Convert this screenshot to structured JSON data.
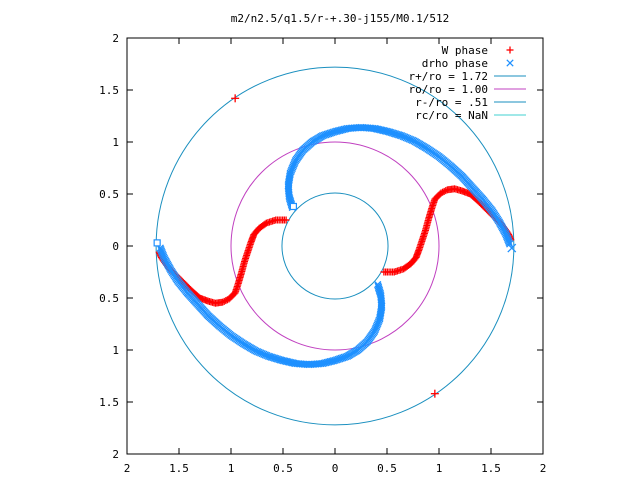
{
  "chart_data": {
    "type": "scatter",
    "title": "m2/n2.5/q1.5/r-+.30-j155/M0.1/512",
    "xlabel": "",
    "ylabel": "",
    "xlim": [
      -2,
      2
    ],
    "ylim": [
      -2,
      2
    ],
    "x_tick_labels": [
      "2",
      "1.5",
      "1",
      "0.5",
      "0",
      "0.5",
      "1",
      "1.5",
      "2"
    ],
    "y_tick_labels": [
      "2",
      "1.5",
      "1",
      "0.5",
      "0",
      "0.5",
      "1",
      "1.5",
      "2"
    ],
    "tick_values": [
      -2,
      -1.5,
      -1,
      -0.5,
      0,
      0.5,
      1,
      1.5,
      2
    ],
    "grid": false,
    "legend_position": "top-right",
    "series": [
      {
        "name": "W phase",
        "marker": "plus",
        "color": "#ff0000",
        "segments": [
          [
            [
              0.47,
              -0.25
            ],
            [
              0.57,
              -0.25
            ],
            [
              0.66,
              -0.22
            ],
            [
              0.73,
              -0.17
            ],
            [
              0.78,
              -0.11
            ],
            [
              0.81,
              -0.03
            ],
            [
              0.84,
              0.06
            ],
            [
              0.87,
              0.15
            ],
            [
              0.9,
              0.26
            ],
            [
              0.93,
              0.36
            ],
            [
              0.96,
              0.45
            ],
            [
              1.02,
              0.51
            ],
            [
              1.08,
              0.54
            ],
            [
              1.15,
              0.55
            ],
            [
              1.22,
              0.53
            ],
            [
              1.3,
              0.5
            ],
            [
              1.38,
              0.43
            ],
            [
              1.45,
              0.36
            ],
            [
              1.52,
              0.29
            ],
            [
              1.58,
              0.23
            ],
            [
              1.63,
              0.17
            ],
            [
              1.67,
              0.11
            ],
            [
              1.69,
              0.06
            ]
          ],
          [
            [
              -0.47,
              0.25
            ],
            [
              -0.57,
              0.25
            ],
            [
              -0.66,
              0.22
            ],
            [
              -0.73,
              0.17
            ],
            [
              -0.78,
              0.11
            ],
            [
              -0.81,
              0.03
            ],
            [
              -0.84,
              -0.06
            ],
            [
              -0.87,
              -0.15
            ],
            [
              -0.9,
              -0.26
            ],
            [
              -0.93,
              -0.36
            ],
            [
              -0.96,
              -0.45
            ],
            [
              -1.02,
              -0.51
            ],
            [
              -1.08,
              -0.54
            ],
            [
              -1.15,
              -0.55
            ],
            [
              -1.22,
              -0.53
            ],
            [
              -1.3,
              -0.5
            ],
            [
              -1.38,
              -0.43
            ],
            [
              -1.45,
              -0.36
            ],
            [
              -1.52,
              -0.29
            ],
            [
              -1.58,
              -0.23
            ],
            [
              -1.63,
              -0.17
            ],
            [
              -1.67,
              -0.11
            ],
            [
              -1.69,
              -0.06
            ]
          ]
        ],
        "isolated": [
          [
            -0.96,
            1.42
          ],
          [
            0.96,
            -1.42
          ]
        ]
      },
      {
        "name": "drho phase",
        "marker": "cross",
        "color": "#1e90ff",
        "segments": [
          [
            [
              -0.41,
              0.37
            ],
            [
              -0.44,
              0.47
            ],
            [
              -0.45,
              0.58
            ],
            [
              -0.43,
              0.7
            ],
            [
              -0.38,
              0.82
            ],
            [
              -0.31,
              0.92
            ],
            [
              -0.22,
              1.0
            ],
            [
              -0.12,
              1.06
            ],
            [
              0.0,
              1.1
            ],
            [
              0.12,
              1.13
            ],
            [
              0.25,
              1.14
            ],
            [
              0.38,
              1.13
            ],
            [
              0.51,
              1.1
            ],
            [
              0.64,
              1.06
            ],
            [
              0.76,
              1.01
            ],
            [
              0.88,
              0.94
            ],
            [
              1.0,
              0.86
            ],
            [
              1.11,
              0.77
            ],
            [
              1.22,
              0.67
            ],
            [
              1.32,
              0.56
            ],
            [
              1.42,
              0.45
            ],
            [
              1.51,
              0.34
            ],
            [
              1.58,
              0.23
            ],
            [
              1.64,
              0.12
            ],
            [
              1.68,
              0.02
            ]
          ],
          [
            [
              0.41,
              -0.37
            ],
            [
              0.44,
              -0.47
            ],
            [
              0.45,
              -0.58
            ],
            [
              0.43,
              -0.7
            ],
            [
              0.38,
              -0.82
            ],
            [
              0.31,
              -0.92
            ],
            [
              0.22,
              -1.0
            ],
            [
              0.12,
              -1.06
            ],
            [
              0.0,
              -1.1
            ],
            [
              -0.12,
              -1.13
            ],
            [
              -0.25,
              -1.14
            ],
            [
              -0.38,
              -1.13
            ],
            [
              -0.51,
              -1.1
            ],
            [
              -0.64,
              -1.06
            ],
            [
              -0.76,
              -1.01
            ],
            [
              -0.88,
              -0.94
            ],
            [
              -1.0,
              -0.86
            ],
            [
              -1.11,
              -0.77
            ],
            [
              -1.22,
              -0.67
            ],
            [
              -1.32,
              -0.56
            ],
            [
              -1.42,
              -0.45
            ],
            [
              -1.51,
              -0.34
            ],
            [
              -1.58,
              -0.23
            ],
            [
              -1.64,
              -0.12
            ],
            [
              -1.68,
              -0.02
            ]
          ]
        ],
        "squares": [
          [
            -0.4,
            0.38
          ],
          [
            -1.71,
            0.03
          ]
        ],
        "isolated": [
          [
            1.7,
            -0.02
          ]
        ]
      }
    ],
    "circles": [
      {
        "name": "r+/ro = 1.72",
        "radius": 1.72,
        "color": "#1a8fbf"
      },
      {
        "name": "ro/ro = 1.00",
        "radius": 1.0,
        "color": "#c040c0"
      },
      {
        "name": "r-/ro = .51",
        "radius": 0.51,
        "color": "#1a8fbf"
      },
      {
        "name": "rc/ro = NaN",
        "radius": null,
        "color": "#40d0d0"
      }
    ]
  }
}
